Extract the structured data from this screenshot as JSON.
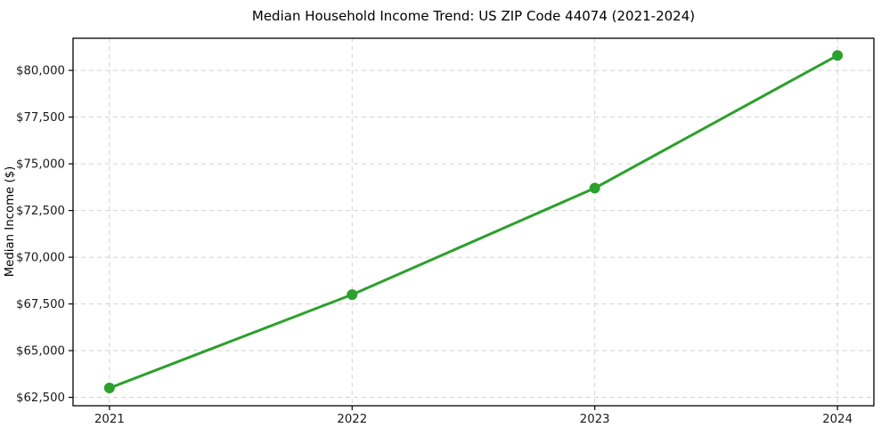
{
  "chart_data": {
    "type": "line",
    "title": "Median Household Income Trend: US ZIP Code 44074 (2021-2024)",
    "xlabel": "",
    "ylabel": "Median Income ($)",
    "x": [
      2021,
      2022,
      2023,
      2024
    ],
    "series": [
      {
        "name": "Median household income",
        "values": [
          63000,
          68000,
          73700,
          80800
        ]
      }
    ],
    "x_ticks": {
      "values": [
        2021,
        2022,
        2023,
        2024
      ],
      "labels": [
        "2021",
        "2022",
        "2023",
        "2024"
      ]
    },
    "y_ticks": {
      "values": [
        62500,
        65000,
        67500,
        70000,
        72500,
        75000,
        77500,
        80000
      ],
      "labels": [
        "$62,500",
        "$65,000",
        "$67,500",
        "$70,000",
        "$72,500",
        "$75,000",
        "$77,500",
        "$80,000"
      ]
    },
    "xlim": [
      2020.85,
      2024.15
    ],
    "ylim": [
      62050,
      81720
    ],
    "grid": {
      "visible": true,
      "style": "dashed",
      "color": "#d3d3d3"
    },
    "legend": {
      "visible": false
    },
    "style": {
      "line_color": "#2ca02c",
      "line_width": 3,
      "marker": "circle",
      "marker_radius": 6,
      "marker_color": "#2ca02c",
      "spine_color": "#000000",
      "background": "#ffffff"
    }
  }
}
